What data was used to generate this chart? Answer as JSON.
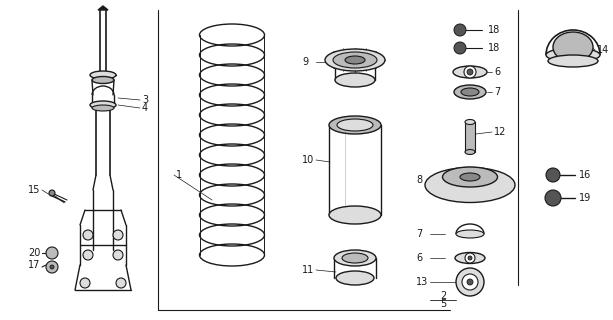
{
  "bg_color": "#ffffff",
  "line_color": "#1a1a1a",
  "fig_width": 6.13,
  "fig_height": 3.2,
  "dpi": 100,
  "gray_dark": "#555555",
  "gray_mid": "#888888",
  "gray_light": "#bbbbbb",
  "gray_vlight": "#dddddd",
  "border_color": "#333333"
}
